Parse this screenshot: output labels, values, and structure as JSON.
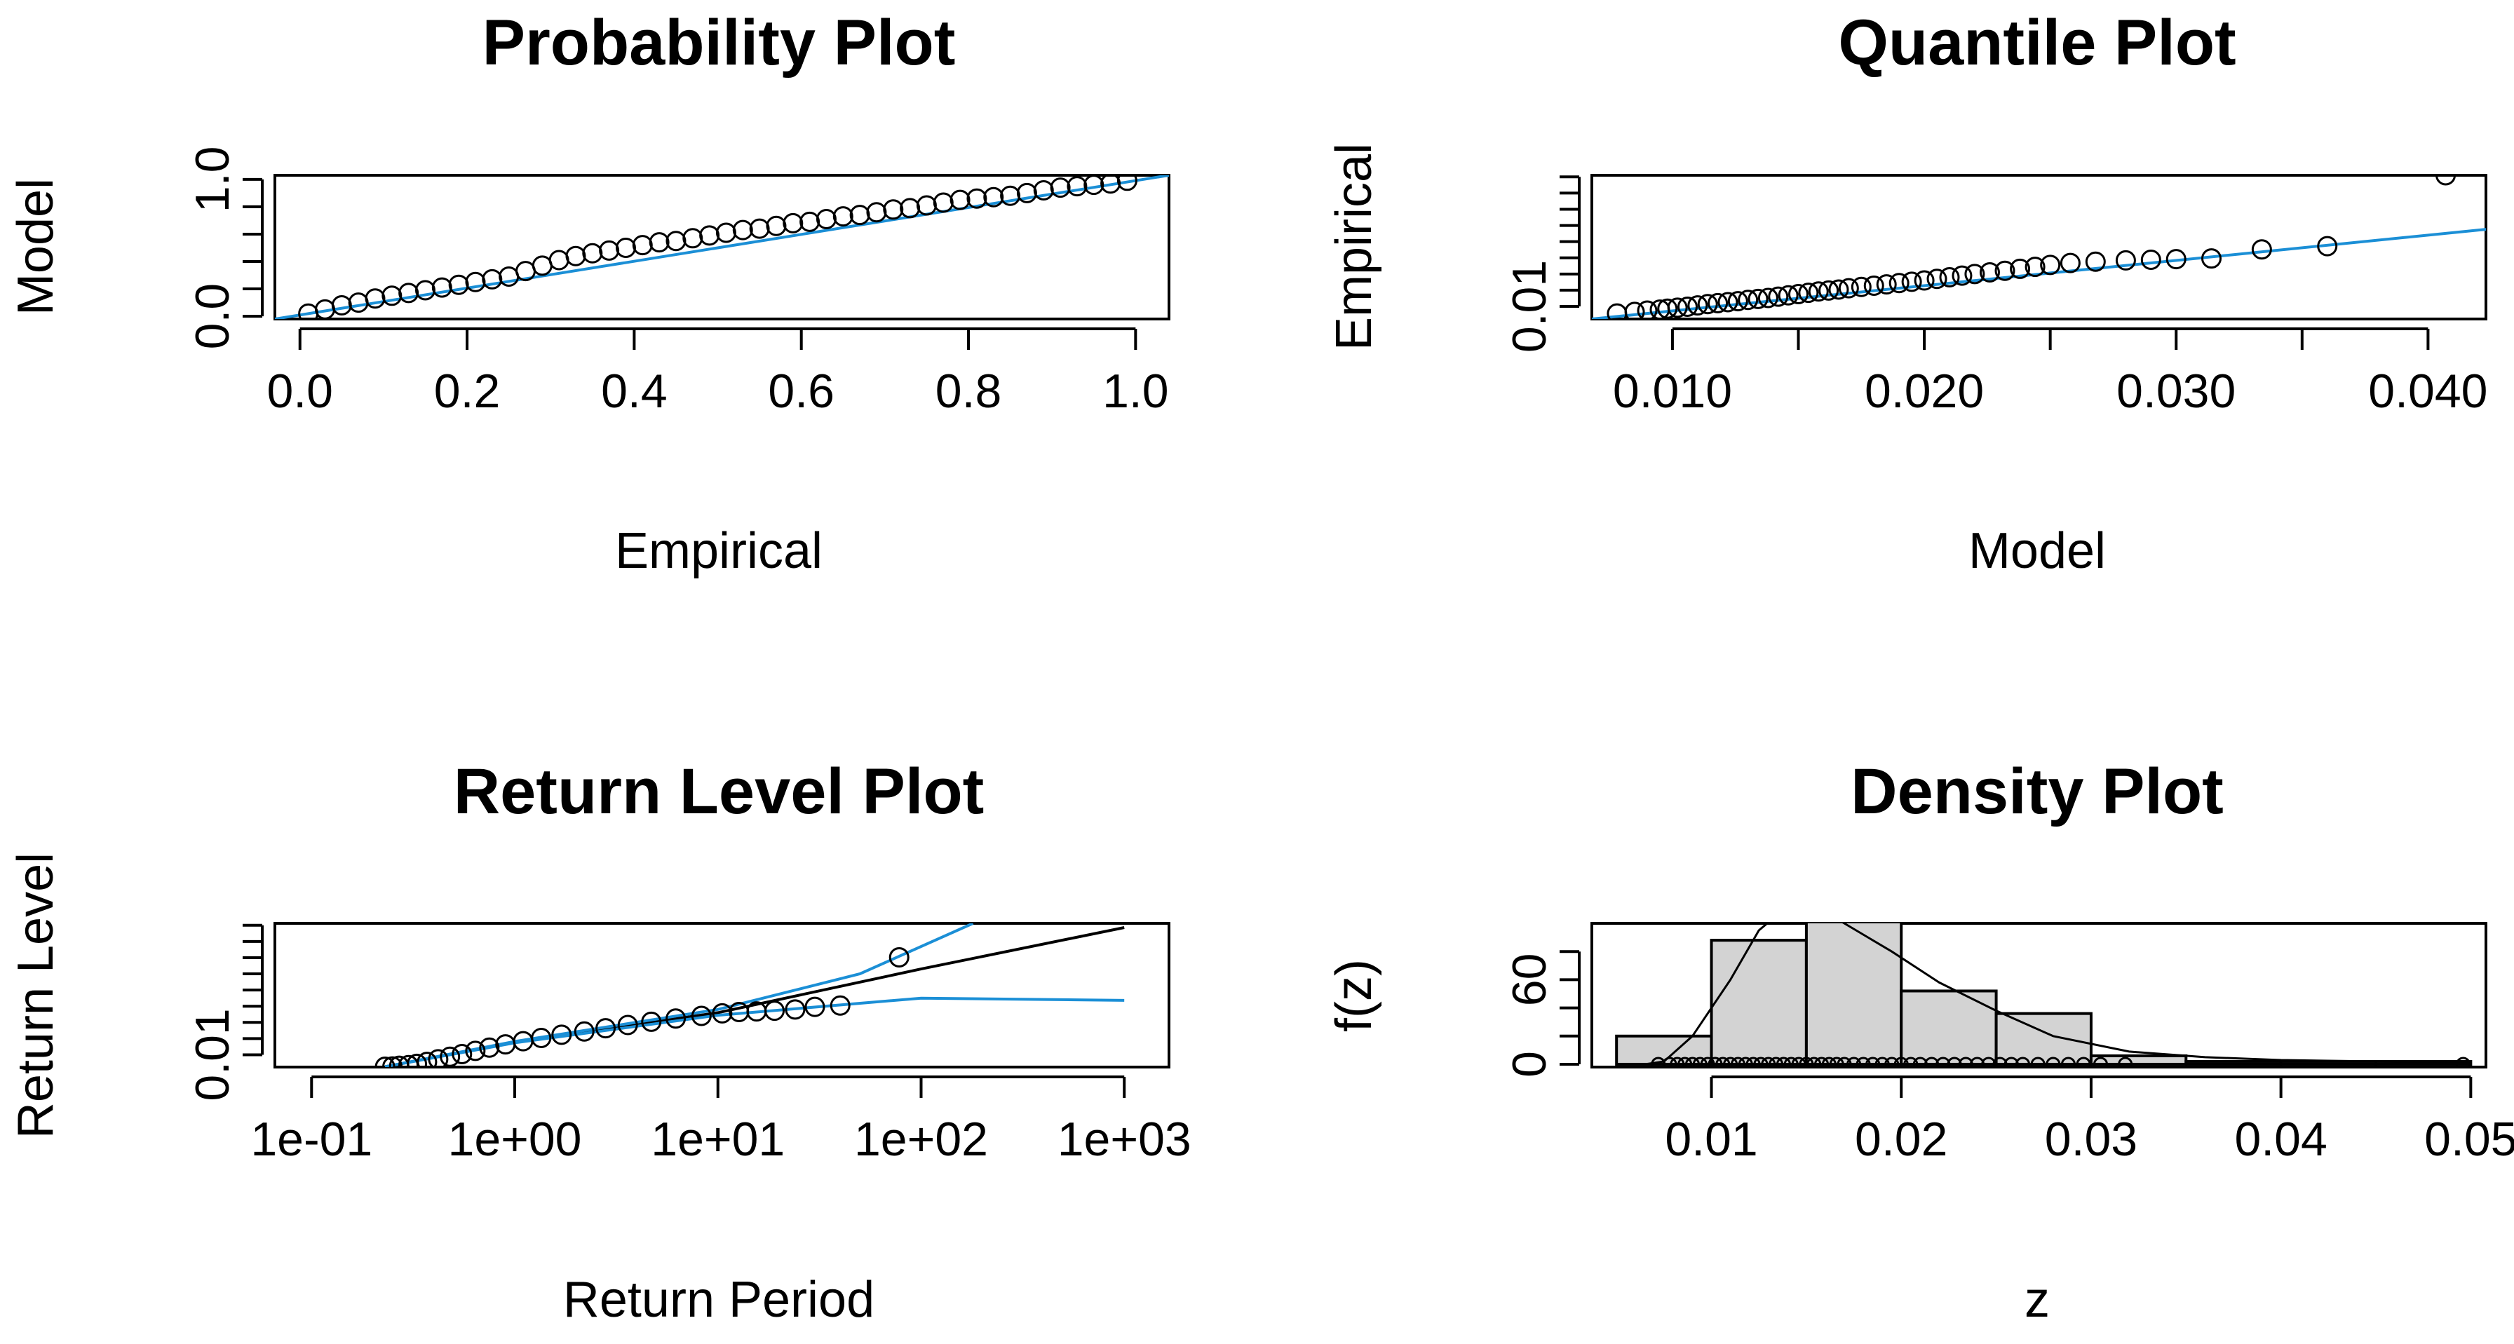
{
  "colors": {
    "model_line": "#1b8fd6",
    "points": "#000000",
    "bar_fill": "#d3d3d3",
    "axis": "#000000"
  },
  "chart_data": [
    {
      "id": "probability",
      "type": "scatter",
      "title": "Probability Plot",
      "xlabel": "Empirical",
      "ylabel": "Model",
      "xlim": [
        -0.03,
        1.04
      ],
      "ylim": [
        -0.02,
        1.03
      ],
      "xticks": [
        0,
        0.2,
        0.4,
        0.6,
        0.8,
        1.0
      ],
      "xtick_labels": [
        "0.0",
        "0.2",
        "0.4",
        "0.6",
        "0.8",
        "1.0"
      ],
      "yticks": [
        0,
        1.0
      ],
      "ytick_labels": [
        "0.0",
        "1.0"
      ],
      "y_minor_ticks": [
        0.2,
        0.4,
        0.6,
        0.8
      ],
      "points": [
        [
          0.01,
          0.02
        ],
        [
          0.03,
          0.05
        ],
        [
          0.05,
          0.08
        ],
        [
          0.07,
          0.1
        ],
        [
          0.09,
          0.13
        ],
        [
          0.11,
          0.15
        ],
        [
          0.13,
          0.17
        ],
        [
          0.15,
          0.19
        ],
        [
          0.17,
          0.21
        ],
        [
          0.19,
          0.23
        ],
        [
          0.21,
          0.25
        ],
        [
          0.23,
          0.27
        ],
        [
          0.25,
          0.29
        ],
        [
          0.27,
          0.33
        ],
        [
          0.29,
          0.37
        ],
        [
          0.31,
          0.41
        ],
        [
          0.33,
          0.44
        ],
        [
          0.35,
          0.46
        ],
        [
          0.37,
          0.48
        ],
        [
          0.39,
          0.5
        ],
        [
          0.41,
          0.52
        ],
        [
          0.43,
          0.54
        ],
        [
          0.45,
          0.55
        ],
        [
          0.47,
          0.57
        ],
        [
          0.49,
          0.59
        ],
        [
          0.51,
          0.61
        ],
        [
          0.53,
          0.63
        ],
        [
          0.55,
          0.64
        ],
        [
          0.57,
          0.66
        ],
        [
          0.59,
          0.68
        ],
        [
          0.61,
          0.69
        ],
        [
          0.63,
          0.71
        ],
        [
          0.65,
          0.73
        ],
        [
          0.67,
          0.74
        ],
        [
          0.69,
          0.76
        ],
        [
          0.71,
          0.78
        ],
        [
          0.73,
          0.79
        ],
        [
          0.75,
          0.81
        ],
        [
          0.77,
          0.83
        ],
        [
          0.79,
          0.85
        ],
        [
          0.81,
          0.86
        ],
        [
          0.83,
          0.87
        ],
        [
          0.85,
          0.88
        ],
        [
          0.87,
          0.9
        ],
        [
          0.89,
          0.92
        ],
        [
          0.91,
          0.94
        ],
        [
          0.93,
          0.95
        ],
        [
          0.95,
          0.96
        ],
        [
          0.97,
          0.97
        ],
        [
          0.99,
          0.99
        ]
      ],
      "lines": [
        {
          "name": "reference",
          "color_key": "model_line",
          "points": [
            [
              -0.03,
              -0.02
            ],
            [
              1.04,
              1.03
            ]
          ]
        }
      ]
    },
    {
      "id": "quantile",
      "type": "scatter",
      "title": "Quantile Plot",
      "xlabel": "Model",
      "ylabel": "Empirical",
      "xlim": [
        0.0068,
        0.0423
      ],
      "ylim": [
        0.0061,
        0.0505
      ],
      "xticks": [
        0.01,
        0.015,
        0.02,
        0.025,
        0.03,
        0.035,
        0.04
      ],
      "xtick_labels": [
        "0.010",
        "",
        "0.020",
        "",
        "0.030",
        "",
        "0.040"
      ],
      "yticks": [
        0.01
      ],
      "ytick_labels": [
        "0.01"
      ],
      "y_minor_ticks": [
        0.015,
        0.02,
        0.025,
        0.03,
        0.035,
        0.04,
        0.045,
        0.05
      ],
      "points": [
        [
          0.0078,
          0.0078
        ],
        [
          0.0085,
          0.0083
        ],
        [
          0.009,
          0.0087
        ],
        [
          0.0095,
          0.009
        ],
        [
          0.0098,
          0.0093
        ],
        [
          0.0102,
          0.0096
        ],
        [
          0.0106,
          0.0099
        ],
        [
          0.011,
          0.0103
        ],
        [
          0.0114,
          0.0107
        ],
        [
          0.0118,
          0.011
        ],
        [
          0.0122,
          0.0113
        ],
        [
          0.0126,
          0.0116
        ],
        [
          0.013,
          0.012
        ],
        [
          0.0134,
          0.0123
        ],
        [
          0.0138,
          0.0126
        ],
        [
          0.0142,
          0.013
        ],
        [
          0.0146,
          0.0134
        ],
        [
          0.015,
          0.0138
        ],
        [
          0.0154,
          0.0142
        ],
        [
          0.0158,
          0.0146
        ],
        [
          0.0162,
          0.0149
        ],
        [
          0.0166,
          0.0152
        ],
        [
          0.017,
          0.0156
        ],
        [
          0.0175,
          0.016
        ],
        [
          0.018,
          0.0164
        ],
        [
          0.0185,
          0.0168
        ],
        [
          0.019,
          0.0172
        ],
        [
          0.0195,
          0.0176
        ],
        [
          0.02,
          0.018
        ],
        [
          0.0205,
          0.0185
        ],
        [
          0.021,
          0.019
        ],
        [
          0.0215,
          0.0195
        ],
        [
          0.022,
          0.02
        ],
        [
          0.0226,
          0.0205
        ],
        [
          0.0232,
          0.021
        ],
        [
          0.0238,
          0.0216
        ],
        [
          0.0244,
          0.0222
        ],
        [
          0.025,
          0.0228
        ],
        [
          0.0258,
          0.0234
        ],
        [
          0.0268,
          0.0238
        ],
        [
          0.028,
          0.0242
        ],
        [
          0.029,
          0.0244
        ],
        [
          0.03,
          0.0246
        ],
        [
          0.0314,
          0.0248
        ],
        [
          0.0334,
          0.0276
        ],
        [
          0.036,
          0.0286
        ],
        [
          0.0407,
          0.0505
        ]
      ],
      "lines": [
        {
          "name": "reference",
          "color_key": "model_line",
          "points": [
            [
              0.0068,
              0.0061
            ],
            [
              0.0423,
              0.0338
            ]
          ]
        }
      ]
    },
    {
      "id": "return_level",
      "type": "line",
      "title": "Return Level Plot",
      "xlabel": "Return Period",
      "ylabel": "Return Level",
      "xscale": "log10",
      "xlim": [
        0.066,
        1660
      ],
      "ylim": [
        0.0062,
        0.0506
      ],
      "xticks": [
        0.1,
        1,
        10,
        100,
        1000
      ],
      "xtick_labels": [
        "1e-01",
        "1e+00",
        "1e+01",
        "1e+02",
        "1e+03"
      ],
      "yticks": [
        0.01
      ],
      "ytick_labels": [
        "0.01"
      ],
      "y_minor_ticks": [
        0.015,
        0.02,
        0.025,
        0.03,
        0.035,
        0.04,
        0.045,
        0.05
      ],
      "series": [
        {
          "name": "estimate",
          "color_key": "points",
          "points": [
            [
              0.23,
              0.0063
            ],
            [
              1,
              0.0139
            ],
            [
              10,
              0.023
            ],
            [
              100,
              0.0365
            ],
            [
              1000,
              0.0493
            ]
          ]
        },
        {
          "name": "upper",
          "color_key": "model_line",
          "points": [
            [
              0.23,
              0.0063
            ],
            [
              1,
              0.0141
            ],
            [
              10,
              0.024
            ],
            [
              50,
              0.035
            ],
            [
              180,
              0.0506
            ]
          ]
        },
        {
          "name": "lower",
          "color_key": "model_line",
          "points": [
            [
              0.23,
              0.0063
            ],
            [
              1,
              0.0137
            ],
            [
              10,
              0.0222
            ],
            [
              100,
              0.0275
            ],
            [
              1000,
              0.0268
            ]
          ]
        }
      ],
      "points": [
        [
          0.23,
          0.0063
        ],
        [
          0.25,
          0.0064
        ],
        [
          0.27,
          0.0066
        ],
        [
          0.3,
          0.0068
        ],
        [
          0.33,
          0.0072
        ],
        [
          0.37,
          0.0078
        ],
        [
          0.42,
          0.0086
        ],
        [
          0.48,
          0.0094
        ],
        [
          0.55,
          0.0102
        ],
        [
          0.64,
          0.0112
        ],
        [
          0.75,
          0.0122
        ],
        [
          0.9,
          0.0132
        ],
        [
          1.1,
          0.0142
        ],
        [
          1.35,
          0.0152
        ],
        [
          1.7,
          0.0162
        ],
        [
          2.2,
          0.0172
        ],
        [
          2.8,
          0.0182
        ],
        [
          3.6,
          0.0192
        ],
        [
          4.7,
          0.0202
        ],
        [
          6.2,
          0.0212
        ],
        [
          8.3,
          0.022
        ],
        [
          10.5,
          0.0228
        ],
        [
          12.7,
          0.0232
        ],
        [
          15.5,
          0.0234
        ],
        [
          19,
          0.0236
        ],
        [
          24,
          0.024
        ],
        [
          30,
          0.0248
        ],
        [
          40,
          0.0252
        ],
        [
          78,
          0.0401
        ]
      ]
    },
    {
      "id": "density",
      "type": "bar",
      "title": "Density Plot",
      "xlabel": "z",
      "ylabel": "f(z)",
      "xlim": [
        0.0037,
        0.0508
      ],
      "ylim": [
        -2,
        100
      ],
      "xticks": [
        0.01,
        0.02,
        0.03,
        0.04,
        0.05
      ],
      "xtick_labels": [
        "0.01",
        "0.02",
        "0.03",
        "0.04",
        "0.05"
      ],
      "yticks": [
        0,
        60
      ],
      "ytick_labels": [
        "0",
        "60"
      ],
      "y_minor_ticks": [
        20,
        40,
        80
      ],
      "bins": [
        [
          0.005,
          0.01
        ],
        [
          0.01,
          0.015
        ],
        [
          0.015,
          0.02
        ],
        [
          0.02,
          0.025
        ],
        [
          0.025,
          0.03
        ],
        [
          0.03,
          0.035
        ],
        [
          0.035,
          0.04
        ],
        [
          0.04,
          0.045
        ],
        [
          0.045,
          0.05
        ]
      ],
      "values": [
        20,
        88,
        101,
        52,
        36,
        6,
        2,
        2,
        2
      ],
      "curve": [
        [
          0.005,
          0
        ],
        [
          0.0065,
          0
        ],
        [
          0.0075,
          2
        ],
        [
          0.009,
          20
        ],
        [
          0.011,
          60
        ],
        [
          0.0125,
          95
        ],
        [
          0.014,
          112
        ],
        [
          0.0155,
          112
        ],
        [
          0.017,
          100
        ],
        [
          0.0195,
          80
        ],
        [
          0.022,
          58
        ],
        [
          0.025,
          38
        ],
        [
          0.028,
          20
        ],
        [
          0.032,
          9
        ],
        [
          0.036,
          5
        ],
        [
          0.04,
          3
        ],
        [
          0.045,
          2
        ],
        [
          0.05,
          1
        ]
      ],
      "rug": [
        0.0072,
        0.0078,
        0.0082,
        0.0086,
        0.009,
        0.0094,
        0.0098,
        0.0102,
        0.0106,
        0.011,
        0.0114,
        0.0118,
        0.0122,
        0.0126,
        0.013,
        0.0134,
        0.0138,
        0.0142,
        0.0146,
        0.015,
        0.0154,
        0.0158,
        0.0162,
        0.0166,
        0.017,
        0.0175,
        0.018,
        0.0185,
        0.019,
        0.0195,
        0.02,
        0.0205,
        0.021,
        0.0216,
        0.0222,
        0.0228,
        0.0234,
        0.024,
        0.0246,
        0.0252,
        0.0258,
        0.0264,
        0.0272,
        0.028,
        0.0288,
        0.0296,
        0.0305,
        0.0318,
        0.0496
      ]
    }
  ]
}
